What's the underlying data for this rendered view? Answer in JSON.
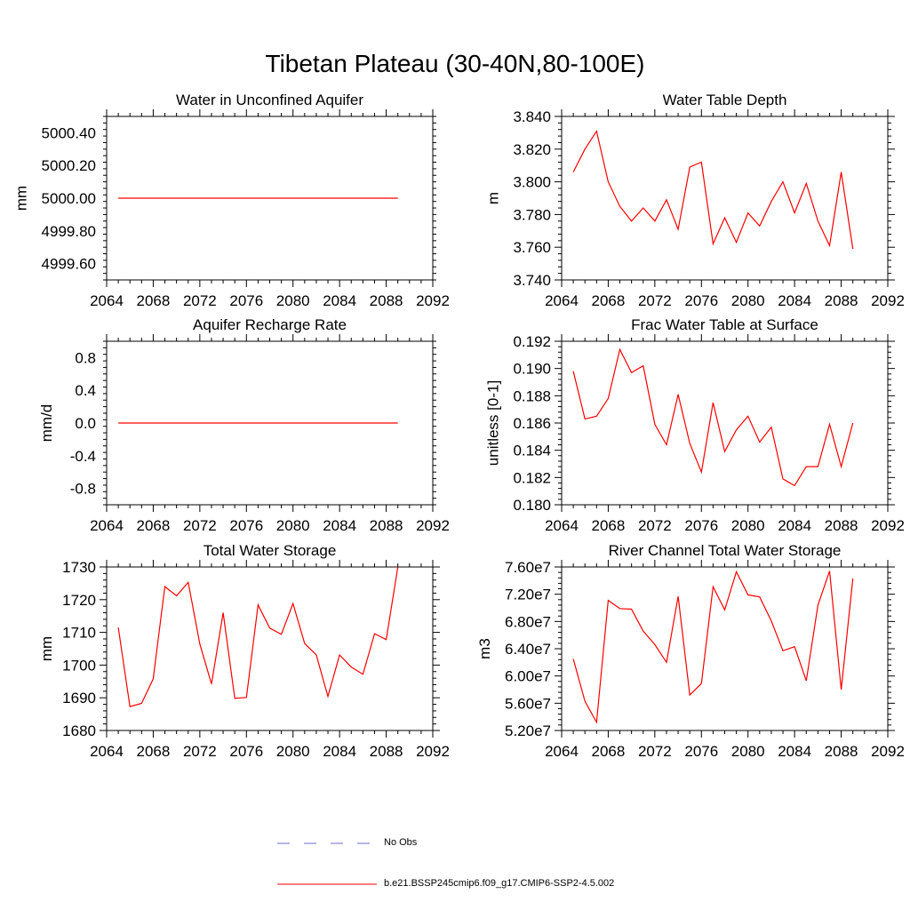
{
  "page": {
    "title": "Tibetan Plateau (30-40N,80-100E)"
  },
  "legend": {
    "entries": [
      {
        "label": "No Obs",
        "color": "#6b6bd1",
        "dash": "dashed"
      },
      {
        "label": "b.e21.BSSP245cmip6.f09_g17.CMIP6-SSP2-4.5.002",
        "color": "#ff0000",
        "dash": "solid"
      }
    ]
  },
  "chart_data": [
    {
      "type": "line",
      "title": "Water in Unconfined Aquifer",
      "ylabel": "mm",
      "xlim": [
        2064,
        2092
      ],
      "ylim": [
        4999.5,
        5000.5
      ],
      "xticks": [
        2064,
        2068,
        2072,
        2076,
        2080,
        2084,
        2088,
        2092
      ],
      "yticks": [
        4999.6,
        4999.8,
        5000.0,
        5000.2,
        5000.4
      ],
      "ytick_labels": [
        "4999.60",
        "4999.80",
        "5000.00",
        "5000.20",
        "5000.40"
      ],
      "x": [
        2065,
        2089
      ],
      "values": [
        5000.0,
        5000.0
      ],
      "color": "#ff0000"
    },
    {
      "type": "line",
      "title": "Water Table Depth",
      "ylabel": "m",
      "xlim": [
        2064,
        2092
      ],
      "ylim": [
        3.74,
        3.84
      ],
      "xticks": [
        2064,
        2068,
        2072,
        2076,
        2080,
        2084,
        2088,
        2092
      ],
      "yticks": [
        3.74,
        3.76,
        3.78,
        3.8,
        3.82,
        3.84
      ],
      "ytick_labels": [
        "3.740",
        "3.760",
        "3.780",
        "3.800",
        "3.820",
        "3.840"
      ],
      "x": [
        2065,
        2066,
        2067,
        2068,
        2069,
        2070,
        2071,
        2072,
        2073,
        2074,
        2075,
        2076,
        2077,
        2078,
        2079,
        2080,
        2081,
        2082,
        2083,
        2084,
        2085,
        2086,
        2087,
        2088,
        2089
      ],
      "values": [
        3.806,
        3.82,
        3.831,
        3.8,
        3.785,
        3.776,
        3.784,
        3.776,
        3.789,
        3.771,
        3.809,
        3.812,
        3.762,
        3.778,
        3.763,
        3.781,
        3.773,
        3.788,
        3.8,
        3.781,
        3.799,
        3.776,
        3.761,
        3.806,
        3.759
      ],
      "color": "#ff0000"
    },
    {
      "type": "line",
      "title": "Aquifer Recharge Rate",
      "ylabel": "mm/d",
      "xlim": [
        2064,
        2092
      ],
      "ylim": [
        -1.0,
        1.0
      ],
      "xticks": [
        2064,
        2068,
        2072,
        2076,
        2080,
        2084,
        2088,
        2092
      ],
      "yticks": [
        -0.8,
        -0.4,
        0.0,
        0.4,
        0.8
      ],
      "ytick_labels": [
        "-0.8",
        "-0.4",
        "0.0",
        "0.4",
        "0.8"
      ],
      "x": [
        2065,
        2089
      ],
      "values": [
        0.0,
        0.0
      ],
      "color": "#ff0000"
    },
    {
      "type": "line",
      "title": "Frac Water Table at Surface",
      "ylabel": "unitless [0-1]",
      "xlim": [
        2064,
        2092
      ],
      "ylim": [
        0.18,
        0.192
      ],
      "xticks": [
        2064,
        2068,
        2072,
        2076,
        2080,
        2084,
        2088,
        2092
      ],
      "yticks": [
        0.18,
        0.182,
        0.184,
        0.186,
        0.188,
        0.19,
        0.192
      ],
      "ytick_labels": [
        "0.180",
        "0.182",
        "0.184",
        "0.186",
        "0.188",
        "0.190",
        "0.192"
      ],
      "x": [
        2065,
        2066,
        2067,
        2068,
        2069,
        2070,
        2071,
        2072,
        2073,
        2074,
        2075,
        2076,
        2077,
        2078,
        2079,
        2080,
        2081,
        2082,
        2083,
        2084,
        2085,
        2086,
        2087,
        2088,
        2089
      ],
      "values": [
        0.1898,
        0.1863,
        0.1865,
        0.1878,
        0.1914,
        0.1897,
        0.1902,
        0.1859,
        0.1844,
        0.1881,
        0.1845,
        0.1824,
        0.1875,
        0.1839,
        0.1855,
        0.1865,
        0.1846,
        0.1857,
        0.1819,
        0.1814,
        0.1828,
        0.1828,
        0.1859,
        0.1828,
        0.186
      ],
      "color": "#ff0000"
    },
    {
      "type": "line",
      "title": "Total Water Storage",
      "ylabel": "mm",
      "xlim": [
        2064,
        2092
      ],
      "ylim": [
        1680,
        1730
      ],
      "xticks": [
        2064,
        2068,
        2072,
        2076,
        2080,
        2084,
        2088,
        2092
      ],
      "yticks": [
        1680,
        1690,
        1700,
        1710,
        1720,
        1730
      ],
      "ytick_labels": [
        "1680",
        "1690",
        "1700",
        "1710",
        "1720",
        "1730"
      ],
      "x": [
        2065,
        2066,
        2067,
        2068,
        2069,
        2070,
        2071,
        2072,
        2073,
        2074,
        2075,
        2076,
        2077,
        2078,
        2079,
        2080,
        2081,
        2082,
        2083,
        2084,
        2085,
        2086,
        2087,
        2088,
        2089
      ],
      "values": [
        1711.5,
        1687.3,
        1688.3,
        1695.8,
        1724.0,
        1721.2,
        1725.3,
        1706.4,
        1694.2,
        1716.0,
        1689.8,
        1690.1,
        1718.4,
        1711.3,
        1709.4,
        1718.8,
        1706.6,
        1703.1,
        1690.4,
        1703.1,
        1699.4,
        1697.2,
        1709.6,
        1707.8,
        1730.0
      ],
      "color": "#ff0000"
    },
    {
      "type": "line",
      "title": "River Channel Total Water Storage",
      "ylabel": "m3",
      "xlim": [
        2064,
        2092
      ],
      "ylim": [
        52000000,
        76000000
      ],
      "xticks": [
        2064,
        2068,
        2072,
        2076,
        2080,
        2084,
        2088,
        2092
      ],
      "yticks": [
        52000000,
        56000000,
        60000000,
        64000000,
        68000000,
        72000000,
        76000000
      ],
      "ytick_labels": [
        "5.20e7",
        "5.60e7",
        "6.00e7",
        "6.40e7",
        "6.80e7",
        "7.20e7",
        "7.60e7"
      ],
      "x": [
        2065,
        2066,
        2067,
        2068,
        2069,
        2070,
        2071,
        2072,
        2073,
        2074,
        2075,
        2076,
        2077,
        2078,
        2079,
        2080,
        2081,
        2082,
        2083,
        2084,
        2085,
        2086,
        2087,
        2088,
        2089
      ],
      "values": [
        62500000,
        56300000,
        53200000,
        71100000,
        69900000,
        69800000,
        66600000,
        64600000,
        62000000,
        71700000,
        57200000,
        58900000,
        73100000,
        69700000,
        75300000,
        71900000,
        71600000,
        68100000,
        63700000,
        64300000,
        59300000,
        70400000,
        75400000,
        58000000,
        74300000
      ],
      "color": "#ff0000"
    }
  ]
}
